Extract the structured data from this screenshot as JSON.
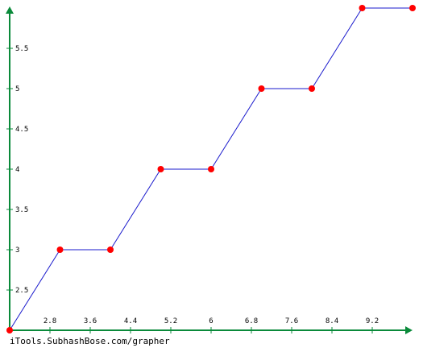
{
  "chart_data": {
    "type": "line",
    "title": "",
    "xlabel": "",
    "ylabel": "",
    "x_ticks": [
      "2.8",
      "3.6",
      "4.4",
      "5.2",
      "6",
      "6.8",
      "7.6",
      "8.4",
      "9.2"
    ],
    "y_ticks": [
      "2.5",
      "3",
      "3.5",
      "4",
      "4.5",
      "5",
      "5.5"
    ],
    "xlim": [
      2,
      10
    ],
    "ylim": [
      2,
      6
    ],
    "grid": false,
    "series": [
      {
        "x": [
          2,
          3,
          4,
          5,
          6,
          7,
          8,
          9,
          10
        ],
        "y": [
          2,
          3,
          3,
          4,
          4,
          5,
          5,
          6,
          6
        ]
      }
    ]
  },
  "colors": {
    "axis": "#0a8a3a",
    "line": "#1a1acc",
    "marker": "#ff0000"
  },
  "footer": {
    "text": "iTools.SubhashBose.com/grapher"
  }
}
